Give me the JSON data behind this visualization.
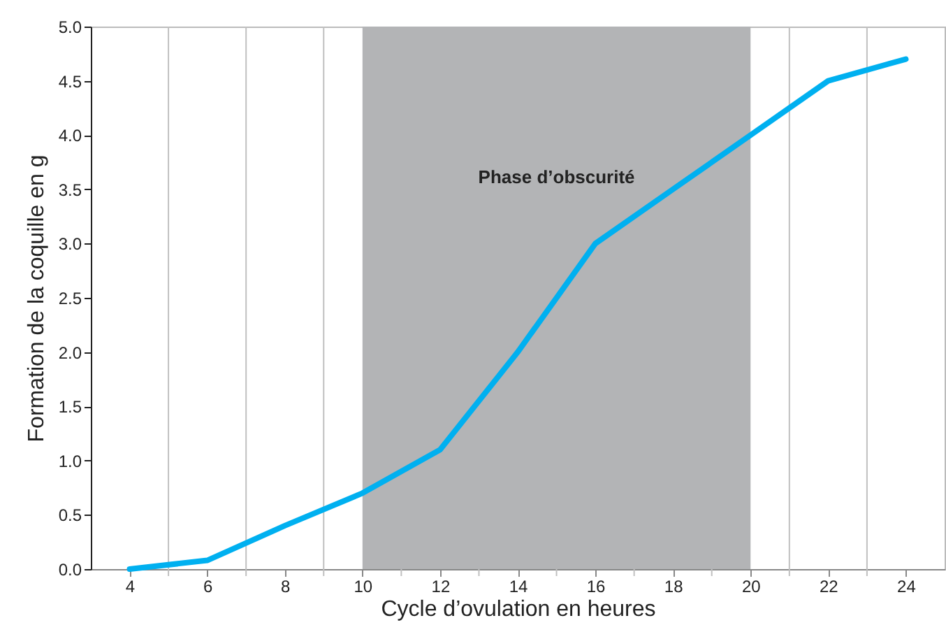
{
  "chart_data": {
    "type": "line",
    "xlabel": "Cycle d’ovulation en heures",
    "ylabel": "Formation de la coquille en g",
    "x": [
      4,
      6,
      8,
      10,
      12,
      14,
      16,
      18,
      20,
      22,
      24
    ],
    "series": [
      {
        "color": "#00b0f0",
        "values": [
          0,
          0.08,
          0.4,
          0.7,
          1.1,
          2.0,
          3.0,
          3.5,
          4.0,
          4.5,
          4.7
        ]
      }
    ],
    "xlim": [
      3,
      25
    ],
    "xticks": [
      {
        "value": 3,
        "label": null
      },
      4,
      {
        "value": 5,
        "label": null
      },
      6,
      {
        "value": 7,
        "label": null
      },
      8,
      {
        "value": 9,
        "label": null
      },
      10,
      {
        "value": 11,
        "label": null
      },
      12,
      {
        "value": 13,
        "label": null
      },
      14,
      {
        "value": 15,
        "label": null
      },
      16,
      {
        "value": 17,
        "label": null
      },
      18,
      {
        "value": 19,
        "label": null
      },
      20,
      {
        "value": 21,
        "label": null
      },
      22,
      {
        "value": 23,
        "label": null
      },
      24,
      {
        "value": 25,
        "label": null
      }
    ],
    "ylim": [
      0,
      5
    ],
    "yticks": [
      {
        "value": 0,
        "label": "0.0"
      },
      {
        "value": 0.5,
        "label": "0.5"
      },
      {
        "value": 1,
        "label": "1.0"
      },
      {
        "value": 1.5,
        "label": "1.5"
      },
      {
        "value": 2,
        "label": "2.0"
      },
      {
        "value": 2.5,
        "label": "2.5"
      },
      {
        "value": 3,
        "label": "3.0"
      },
      {
        "value": 3.5,
        "label": "3.5"
      },
      {
        "value": 4,
        "label": "4.0"
      },
      {
        "value": 4.5,
        "label": "4.5"
      },
      {
        "value": 5,
        "label": "5.0"
      }
    ],
    "bands": [
      {
        "axis": "x",
        "from": 10,
        "to": 20,
        "label": "Phase d’obscurité",
        "color": "#b3b4b6"
      }
    ],
    "grid": "x",
    "marker": "none",
    "line_style": "solid"
  }
}
